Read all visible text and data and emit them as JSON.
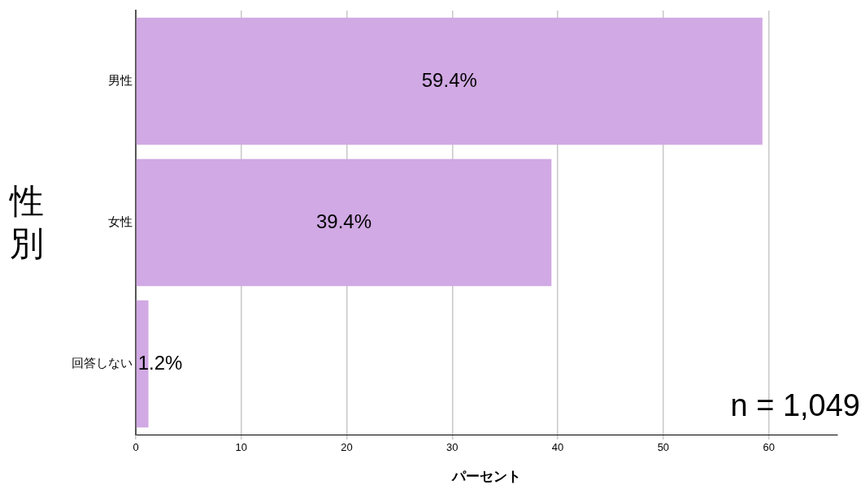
{
  "chart_data": {
    "type": "bar",
    "orientation": "horizontal",
    "xlabel": "パーセント",
    "ylabel": "性別",
    "categories": [
      "男性",
      "女性",
      "回答しない"
    ],
    "values": [
      59.4,
      39.4,
      1.2
    ],
    "value_labels": [
      "59.4%",
      "39.4%",
      "1.2%"
    ],
    "color": "#d1a9e4",
    "xlim": [
      0,
      66.5
    ],
    "xticks": [
      0,
      10,
      20,
      30,
      40,
      50,
      60
    ],
    "grid": "x",
    "legend": false,
    "annotations": [
      "n = 1,049"
    ]
  }
}
